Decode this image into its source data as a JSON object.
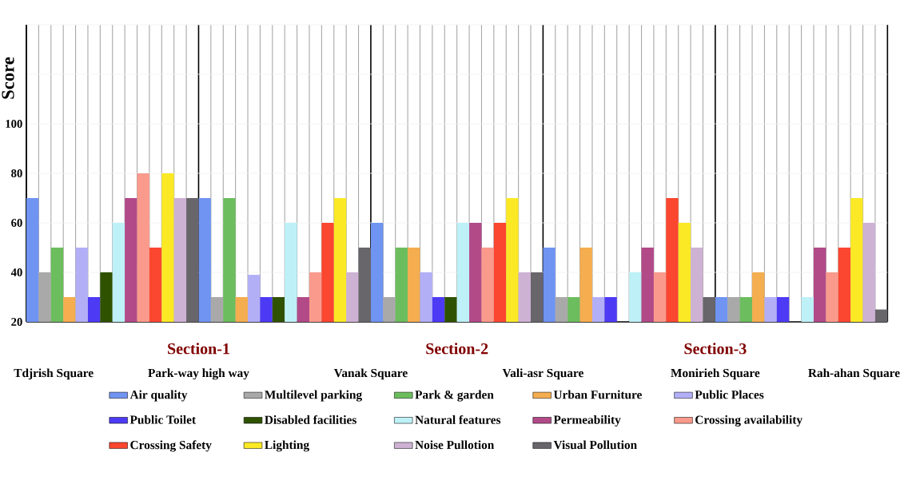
{
  "chart_data": {
    "type": "bar",
    "ylabel": "Score",
    "categories": [
      null,
      null,
      null,
      null,
      null
    ],
    "ylim": [
      20,
      140
    ],
    "yticks": [
      20,
      40,
      60,
      80,
      100,
      {
        "value": 120,
        "label": null
      },
      {
        "value": 140,
        "label": null
      }
    ],
    "grid": true,
    "legend": "bottom",
    "annotations": [
      "Section-1",
      "Section-2",
      "Section-3",
      "Tdjrish Square",
      "Park-way high way",
      "Vanak Square",
      "Vali-asr Square",
      "Monirieh Square",
      "Rah-ahan Square"
    ],
    "series": [
      {
        "name": "Air quality",
        "color": "#6f94f2",
        "values": [
          70,
          70,
          60,
          50,
          30
        ]
      },
      {
        "name": "Multilevel parking",
        "color": "#a9a9a9",
        "values": [
          40,
          30,
          30,
          30,
          30
        ]
      },
      {
        "name": "Park & garden",
        "color": "#6cbd5e",
        "values": [
          50,
          70,
          50,
          30,
          30
        ]
      },
      {
        "name": "Urban Furniture",
        "color": "#f4ad4f",
        "values": [
          30,
          30,
          50,
          50,
          40
        ]
      },
      {
        "name": "Public Places",
        "color": "#b3aff7",
        "values": [
          50,
          39,
          40,
          30,
          30
        ]
      },
      {
        "name": "Public Toilet",
        "color": "#4d3af5",
        "values": [
          30,
          30,
          30,
          30,
          30
        ]
      },
      {
        "name": "Disabled facilities",
        "color": "#2f5200",
        "values": [
          40,
          30,
          30,
          null,
          null
        ]
      },
      {
        "name": "Natural features",
        "color": "#bdf1f7",
        "values": [
          60,
          60,
          60,
          40,
          30
        ]
      },
      {
        "name": "Permeability",
        "color": "#b24a88",
        "values": [
          70,
          30,
          60,
          50,
          50
        ]
      },
      {
        "name": "Crossing availability",
        "color": "#fa9a8c",
        "values": [
          80,
          40,
          50,
          40,
          40
        ]
      },
      {
        "name": "Crossing Safety",
        "color": "#fb4630",
        "values": [
          50,
          60,
          60,
          70,
          50
        ]
      },
      {
        "name": "Lighting",
        "color": "#fbe925",
        "values": [
          80,
          70,
          70,
          60,
          70
        ]
      },
      {
        "name": "Noise Pullotion",
        "color": "#cdb2d4",
        "values": [
          70,
          40,
          40,
          50,
          60
        ]
      },
      {
        "name": "Visual Pollution",
        "color": "#69666b",
        "values": [
          70,
          50,
          40,
          30,
          25
        ]
      }
    ]
  }
}
